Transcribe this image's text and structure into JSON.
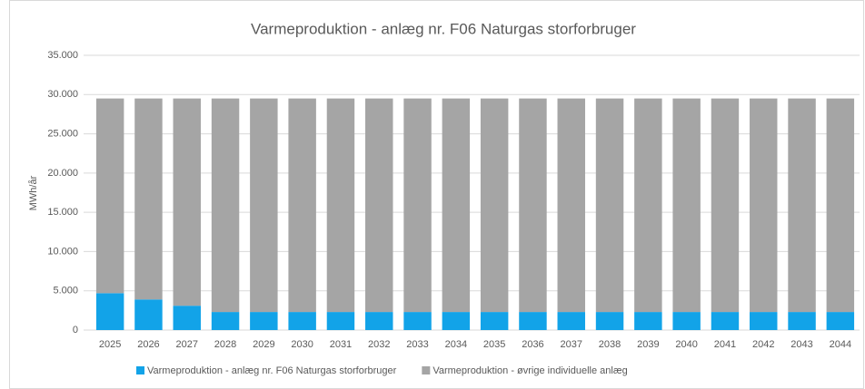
{
  "chart_data": {
    "type": "stacked_bar",
    "title": "Varmeproduktion - anlæg nr. F06 Naturgas storforbruger",
    "ylabel": "MWh/år",
    "categories": [
      "2025",
      "2026",
      "2027",
      "2028",
      "2029",
      "2030",
      "2031",
      "2032",
      "2033",
      "2034",
      "2035",
      "2036",
      "2037",
      "2038",
      "2039",
      "2040",
      "2041",
      "2042",
      "2043",
      "2044"
    ],
    "series": [
      {
        "name": "Varmeproduktion - anlæg nr. F06 Naturgas storforbruger",
        "color": "#12a3e8",
        "values": [
          4700,
          3900,
          3100,
          2300,
          2300,
          2300,
          2300,
          2300,
          2300,
          2300,
          2300,
          2300,
          2300,
          2300,
          2300,
          2300,
          2300,
          2300,
          2300,
          2300
        ]
      },
      {
        "name": "Varmeproduktion - øvrige individuelle anlæg",
        "color": "#a5a5a5",
        "values": [
          24800,
          25600,
          26400,
          27200,
          27200,
          27200,
          27200,
          27200,
          27200,
          27200,
          27200,
          27200,
          27200,
          27200,
          27200,
          27200,
          27200,
          27200,
          27200,
          27200
        ]
      }
    ],
    "ylim": [
      0,
      35000
    ],
    "yticks": [
      0,
      {
        "value": 5000,
        "label": "5.000"
      },
      {
        "value": 10000,
        "label": "10.000"
      },
      {
        "value": 15000,
        "label": "15.000"
      },
      {
        "value": 20000,
        "label": "20.000"
      },
      {
        "value": 25000,
        "label": "25.000"
      },
      {
        "value": 30000,
        "label": "30.000"
      },
      {
        "value": 35000,
        "label": "35.000"
      }
    ],
    "grid": true,
    "legend": "bottom"
  }
}
